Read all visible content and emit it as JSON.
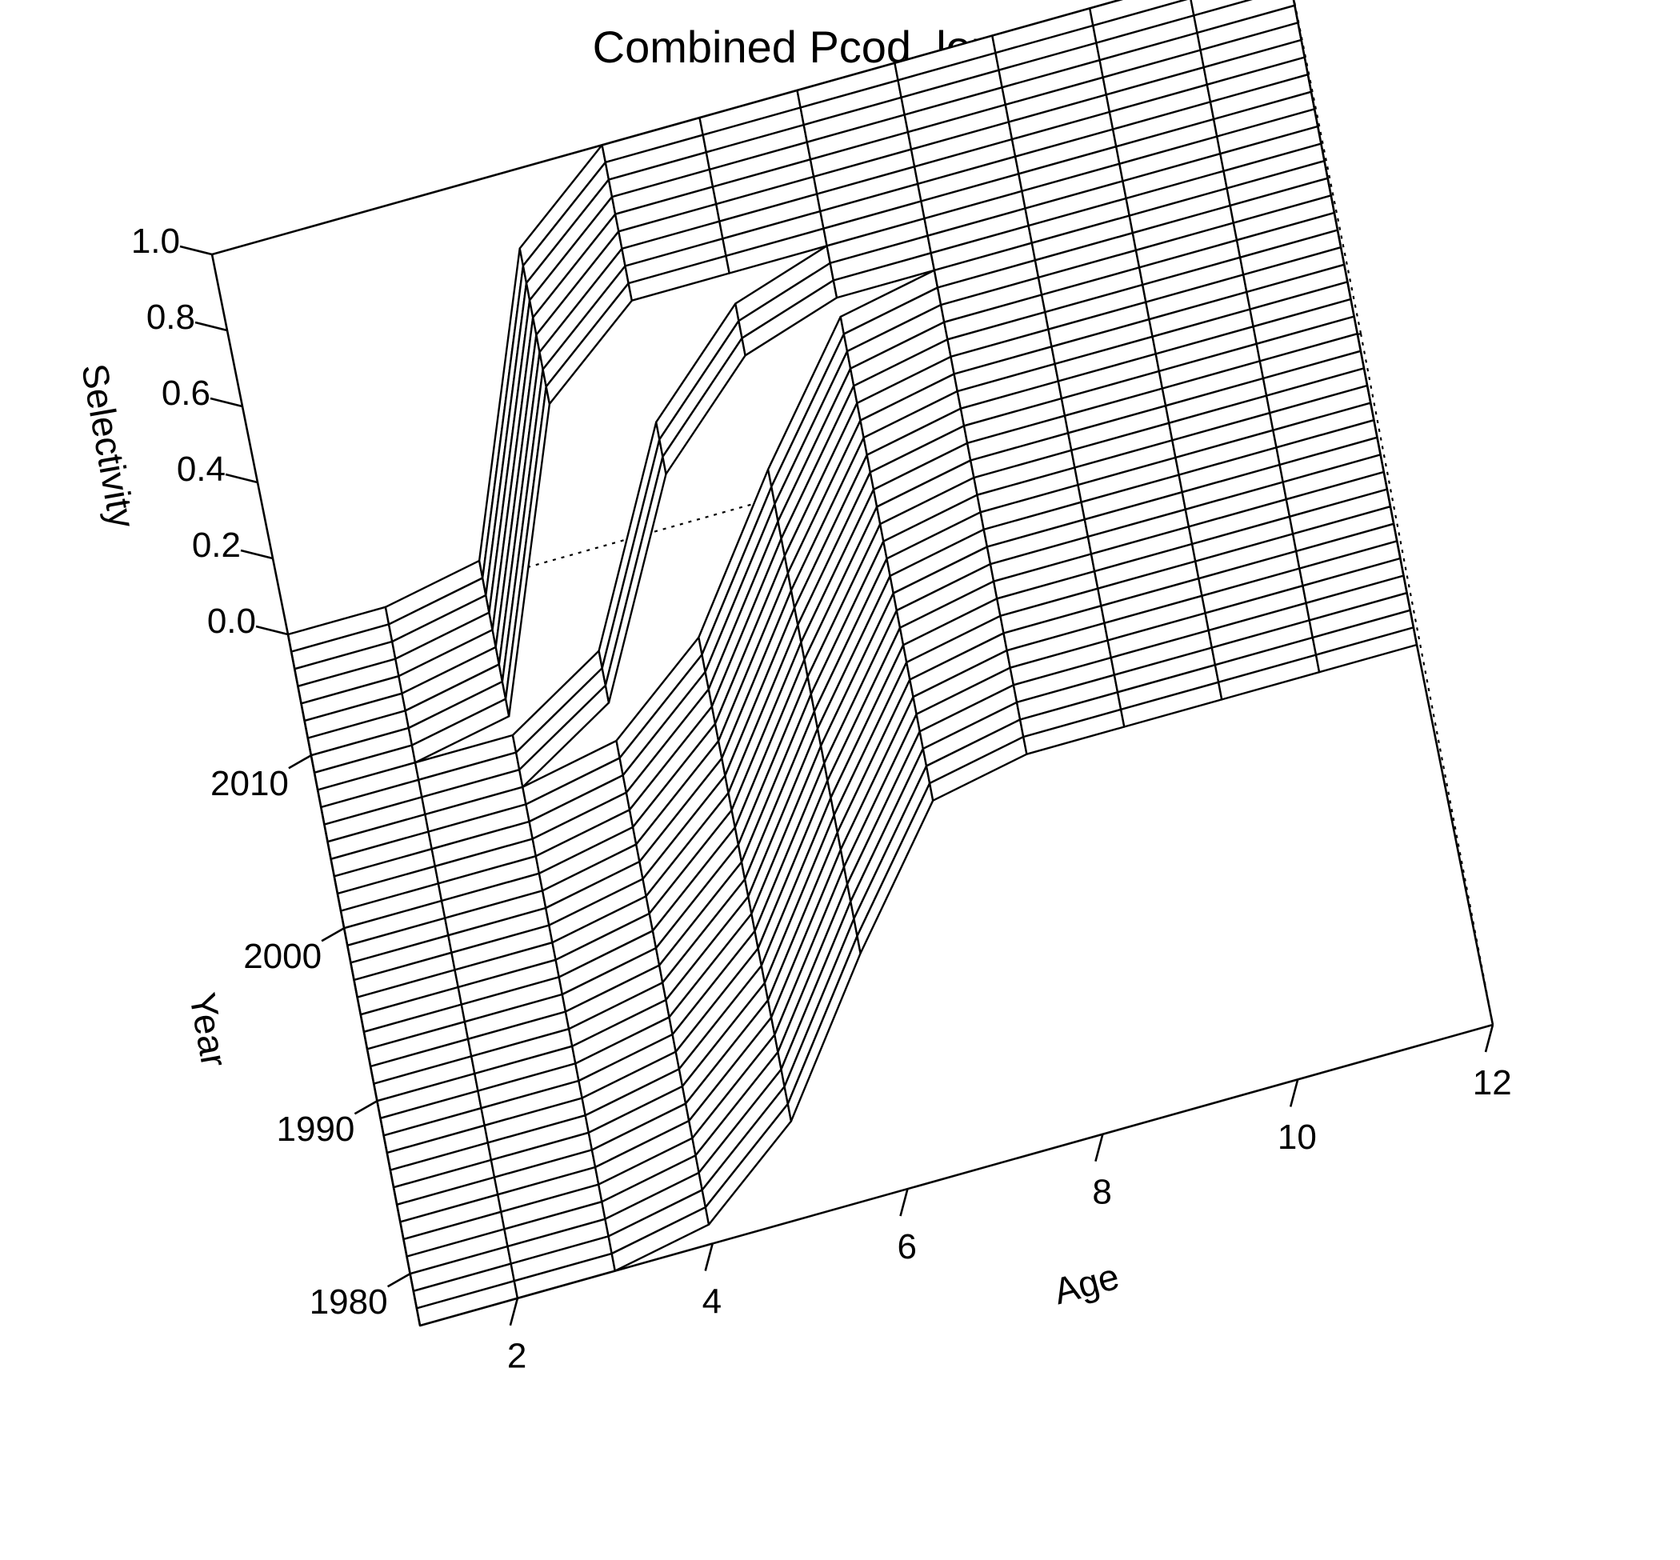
{
  "chart_data": {
    "type": "surface",
    "title": "Combined Pcod_longline_fishery",
    "xlabel": "Age",
    "ylabel": "Year",
    "zlabel": "Selectivity",
    "x_ticks": [
      "2",
      "4",
      "6",
      "8",
      "10",
      "12"
    ],
    "y_ticks": [
      "1980",
      "1990",
      "2000",
      "2010"
    ],
    "z_ticks": [
      "0.0",
      "0.2",
      "0.4",
      "0.6",
      "0.8",
      "1.0"
    ],
    "xlim": [
      1,
      12
    ],
    "ylim": [
      1977,
      2017
    ],
    "zlim": [
      0,
      1
    ],
    "ages": [
      1,
      2,
      3,
      4,
      5,
      6,
      7,
      8,
      9,
      10,
      11,
      12
    ],
    "year_blocks": [
      {
        "years": [
          1977,
          2005
        ],
        "selectivity": [
          0.0,
          0.0,
          0.0,
          0.05,
          0.25,
          0.62,
          0.95,
          1.0,
          1.0,
          1.0,
          1.0,
          1.0
        ]
      },
      {
        "years": [
          2005,
          2008
        ],
        "selectivity": [
          0.0,
          0.0,
          0.0,
          0.15,
          0.68,
          0.92,
          1.0,
          1.0,
          1.0,
          1.0,
          1.0,
          1.0
        ]
      },
      {
        "years": [
          2008,
          2017
        ],
        "selectivity": [
          0.0,
          0.0,
          0.05,
          0.8,
          1.0,
          1.0,
          1.0,
          1.0,
          1.0,
          1.0,
          1.0,
          1.0
        ]
      }
    ]
  }
}
